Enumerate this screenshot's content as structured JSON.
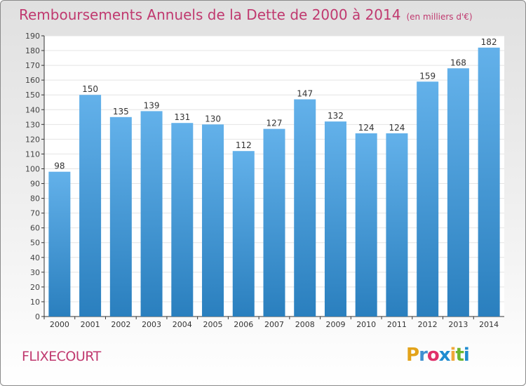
{
  "header": {
    "title": "Remboursements Annuels de la Dette de 2000 à 2014",
    "unit": "(en milliers d'€)"
  },
  "footer": {
    "commune": "FLIXECOURT",
    "logo_letters": [
      "P",
      "r",
      "o",
      "x",
      "i",
      "t",
      "i"
    ],
    "logo_colors": [
      "#e3a31a",
      "#3f8fd1",
      "#e0306a",
      "#1f8bd0",
      "#f0a83a",
      "#6bb62f",
      "#1f8bd0"
    ]
  },
  "colors": {
    "title": "#c0396f",
    "bar_top": "#63b1ea",
    "bar_bottom": "#2a7fbe",
    "grid": "#e4e4e4",
    "axis": "#333333"
  },
  "chart_data": {
    "type": "bar",
    "categories": [
      "2000",
      "2001",
      "2002",
      "2003",
      "2004",
      "2005",
      "2006",
      "2007",
      "2008",
      "2009",
      "2010",
      "2011",
      "2012",
      "2013",
      "2014"
    ],
    "values": [
      98,
      150,
      135,
      139,
      131,
      130,
      112,
      127,
      147,
      132,
      124,
      124,
      159,
      168,
      182
    ],
    "title": "Remboursements Annuels de la Dette de 2000 à 2014",
    "xlabel": "",
    "ylabel": "",
    "ylim": [
      0,
      190
    ],
    "yticks": [
      0,
      10,
      20,
      30,
      40,
      50,
      60,
      70,
      80,
      90,
      100,
      110,
      120,
      130,
      140,
      150,
      160,
      170,
      180,
      190
    ],
    "grid": true,
    "data_labels": true
  }
}
